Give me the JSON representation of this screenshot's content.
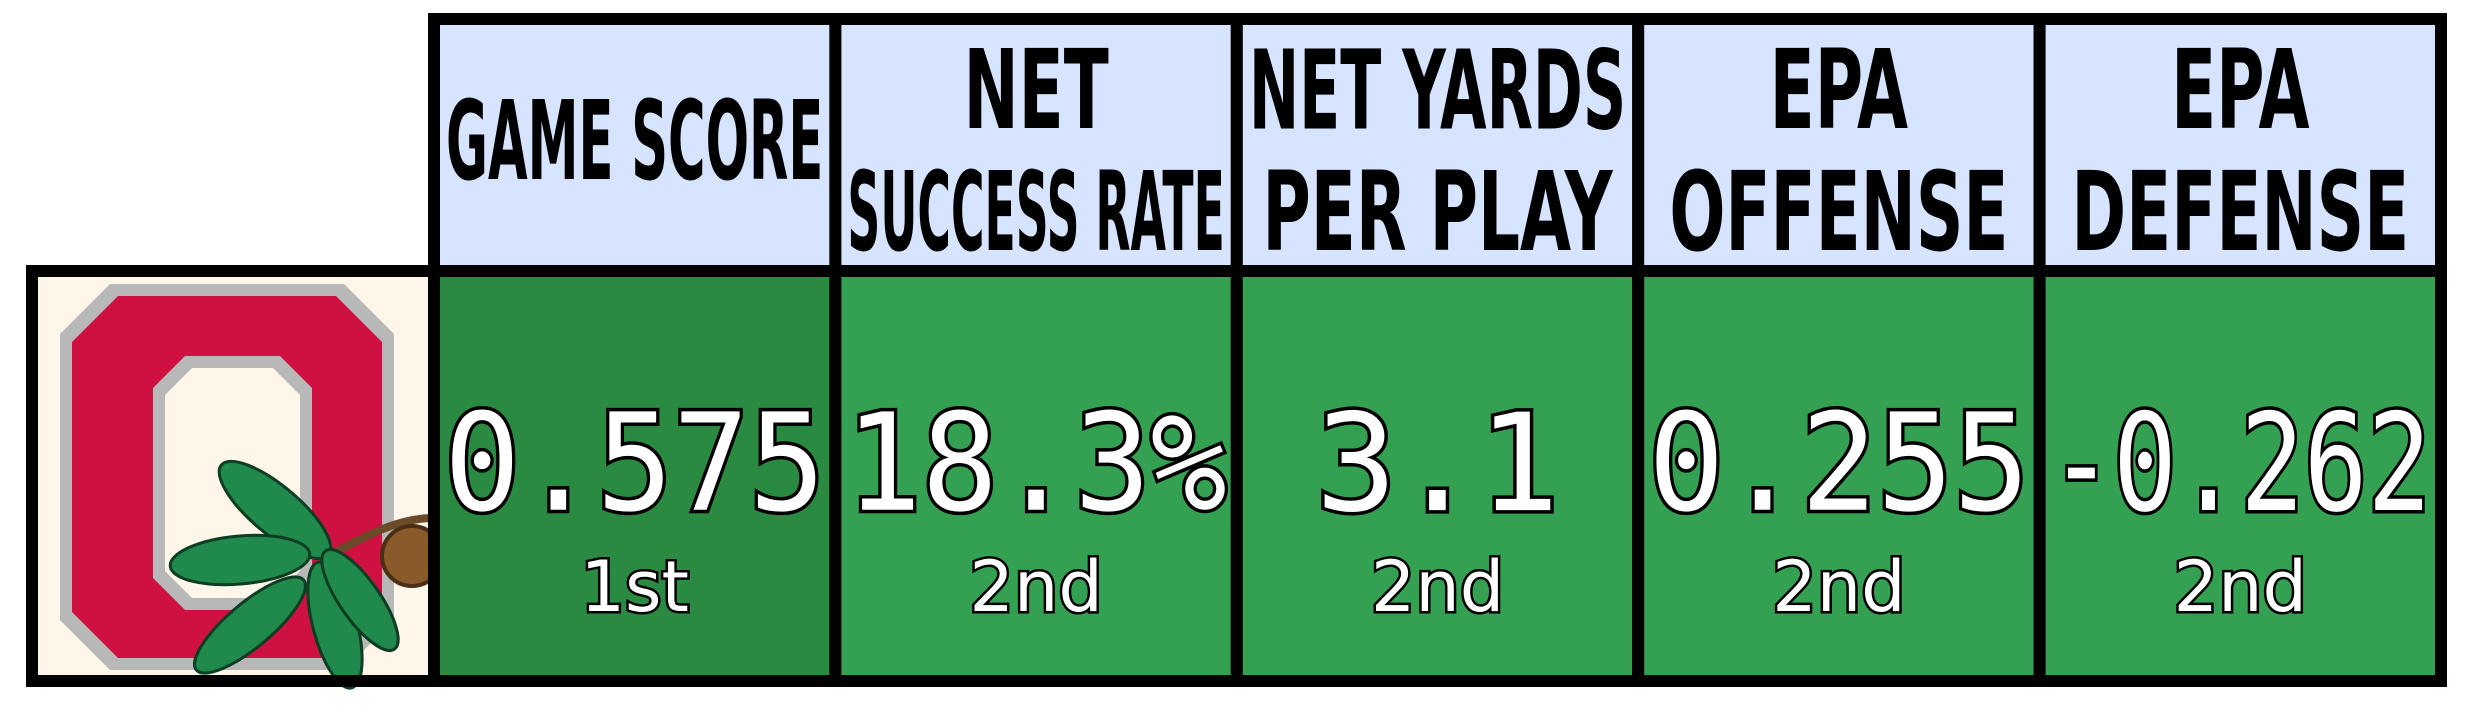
{
  "table": {
    "columns": [
      {
        "header": [
          "GAME SCORE"
        ],
        "value": 0.575,
        "rank": "1st",
        "color": "#2a8a42"
      },
      {
        "header": [
          "NET",
          "SUCCESS RATE"
        ],
        "value": 18.3,
        "value_label": "18.3%",
        "rank": "2nd",
        "color": "#34a052"
      },
      {
        "header": [
          "NET YARDS",
          "PER PLAY"
        ],
        "value": 3.1,
        "rank": "2nd",
        "color": "#34a052"
      },
      {
        "header": [
          "EPA",
          "OFFENSE"
        ],
        "value": 0.255,
        "rank": "2nd",
        "color": "#34a052"
      },
      {
        "header": [
          "EPA",
          "DEFENSE"
        ],
        "value": -0.262,
        "rank": "2nd",
        "color": "#34a052"
      }
    ],
    "header_color": "#d6e4ff"
  }
}
